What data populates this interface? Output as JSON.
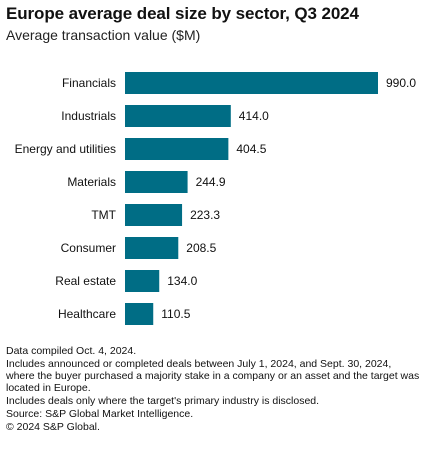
{
  "header": {
    "title": "Europe average deal size by sector, Q3 2024",
    "subtitle": "Average transaction value ($M)"
  },
  "chart_data": {
    "type": "bar",
    "orientation": "horizontal",
    "categories": [
      "Financials",
      "Industrials",
      "Energy and utilities",
      "Materials",
      "TMT",
      "Consumer",
      "Real estate",
      "Healthcare"
    ],
    "values": [
      990.0,
      414.0,
      404.5,
      244.9,
      223.3,
      208.5,
      134.0,
      110.5
    ],
    "value_labels": [
      "990.0",
      "414.0",
      "404.5",
      "244.9",
      "223.3",
      "208.5",
      "134.0",
      "110.5"
    ],
    "title": "Europe average deal size by sector, Q3 2024",
    "subtitle": "Average transaction value ($M)",
    "xlim": [
      0,
      990
    ],
    "grid": false,
    "bar_color": "#006d85"
  },
  "footer": {
    "notes": [
      "Data compiled Oct. 4, 2024.",
      "Includes announced or completed deals between July 1, 2024, and Sept. 30, 2024, where the buyer purchased a majority stake in a company or an asset and the target was located in Europe.",
      "Includes deals only where the target's primary industry is disclosed.",
      "Source: S&P Global Market Intelligence.",
      "© 2024 S&P Global."
    ]
  }
}
